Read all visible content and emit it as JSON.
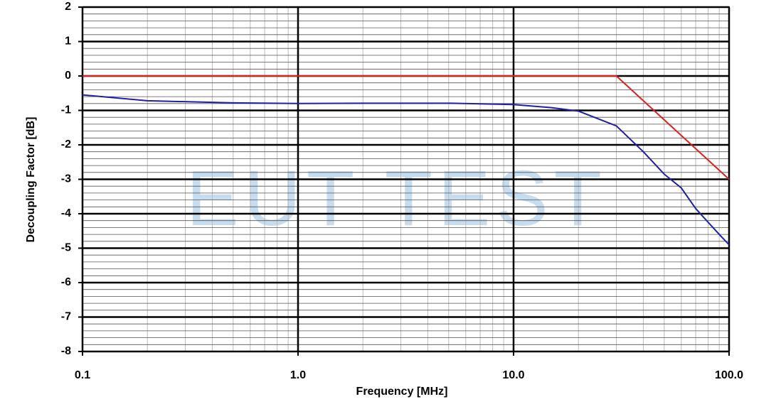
{
  "chart_data": {
    "type": "line",
    "watermark": "EUT TEST",
    "xlabel": "Frequency [MHz]",
    "ylabel": "Decoupling Factor [dB]",
    "xscale": "log",
    "xlim": [
      0.1,
      100
    ],
    "xticks": [
      0.1,
      {
        "value": 1,
        "label": "1.0"
      },
      {
        "value": 10,
        "label": "10.0"
      },
      {
        "value": 100,
        "label": "100.0"
      }
    ],
    "x_minor_ticks": [
      0.2,
      0.3,
      0.4,
      0.5,
      0.6,
      0.7,
      0.8,
      0.9,
      2,
      3,
      4,
      5,
      6,
      7,
      8,
      9,
      20,
      30,
      40,
      50,
      60,
      70,
      80,
      90
    ],
    "ylim": [
      -8,
      2
    ],
    "yticks": [
      2,
      1,
      0,
      -1,
      -2,
      -3,
      -4,
      -5,
      -6,
      -7,
      -8
    ],
    "y_minor_ticks": [
      1.8,
      1.6,
      1.4,
      1.2,
      0.8,
      0.6,
      0.4,
      0.2,
      -0.2,
      -0.4,
      -0.6,
      -0.8,
      -1.2,
      -1.4,
      -1.6,
      -1.8,
      -2.2,
      -2.4,
      -2.6,
      -2.8,
      -3.2,
      -3.4,
      -3.6,
      -3.8,
      -4.2,
      -4.4,
      -4.6,
      -4.8,
      -5.2,
      -5.4,
      -5.6,
      -5.8,
      -6.2,
      -6.4,
      -6.6,
      -6.8,
      -7.2,
      -7.4,
      -7.6,
      -7.8
    ],
    "grid": true,
    "series": [
      {
        "color": "#e02020",
        "x": [
          0.1,
          30,
          100
        ],
        "values": [
          0,
          0,
          -3
        ]
      },
      {
        "color": "#1f1fa8",
        "x": [
          0.1,
          0.2,
          0.5,
          1,
          2,
          5,
          10,
          15,
          20,
          30,
          40,
          50,
          60,
          70,
          80,
          90,
          100
        ],
        "values": [
          -0.55,
          -0.72,
          -0.78,
          -0.8,
          -0.79,
          -0.79,
          -0.83,
          -0.92,
          -1.02,
          -1.45,
          -2.2,
          -2.85,
          -3.25,
          -3.85,
          -4.25,
          -4.6,
          -4.9
        ]
      }
    ]
  }
}
